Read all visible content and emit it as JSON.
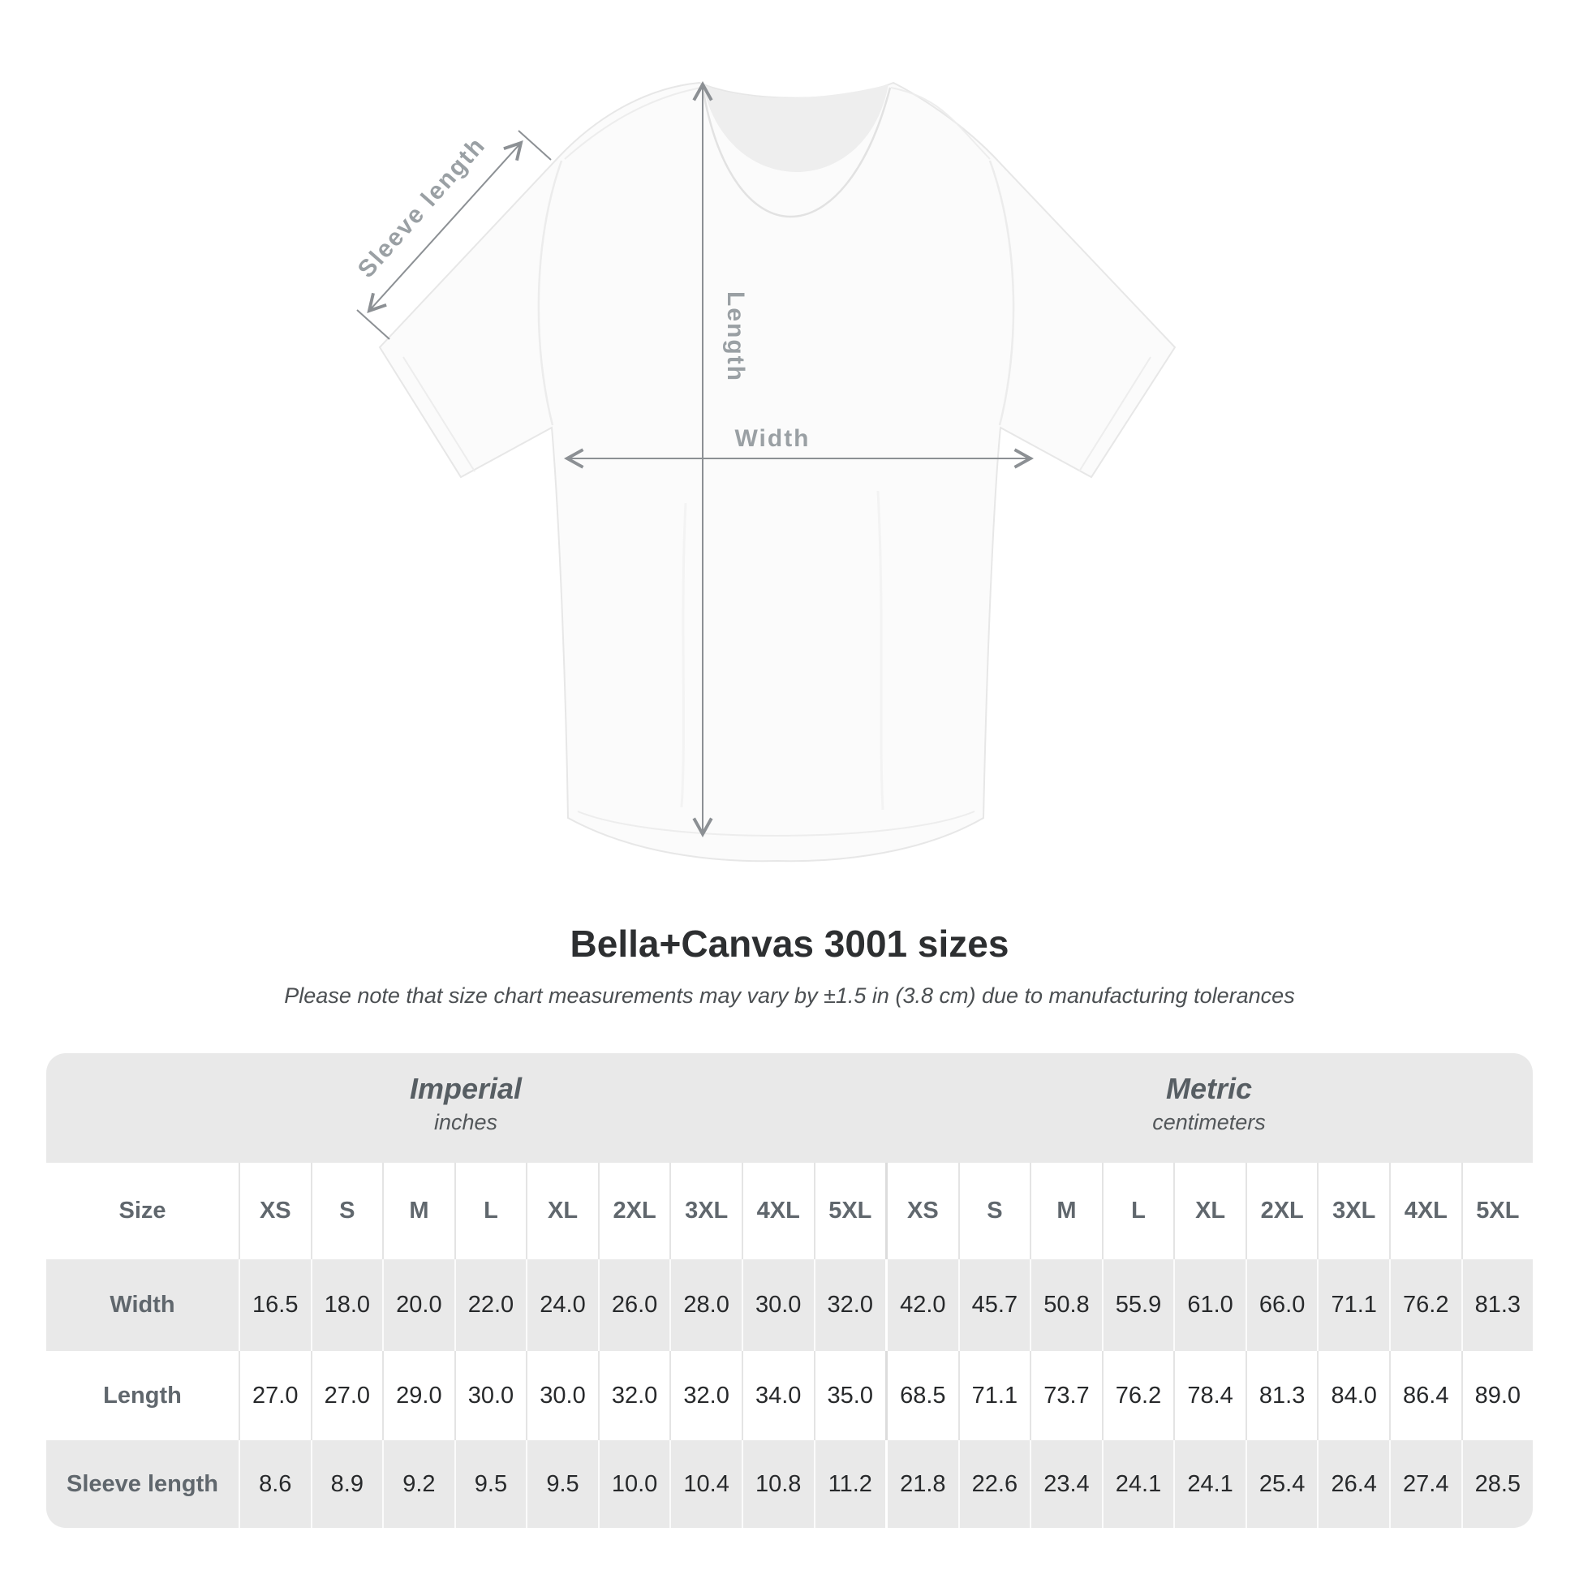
{
  "diagram": {
    "sleeve_length_label": "Sleeve length",
    "length_label": "Length",
    "width_label": "Width"
  },
  "header": {
    "title": "Bella+Canvas 3001 sizes",
    "subtitle": "Please note that size chart measurements may vary by ±1.5 in (3.8 cm) due to manufacturing tolerances"
  },
  "table": {
    "corner_label": "Size",
    "unit_groups": [
      {
        "label": "Imperial",
        "unit": "inches"
      },
      {
        "label": "Metric",
        "unit": "centimeters"
      }
    ],
    "sizes": [
      "XS",
      "S",
      "M",
      "L",
      "XL",
      "2XL",
      "3XL",
      "4XL",
      "5XL"
    ],
    "rows": [
      {
        "label": "Width",
        "imperial": [
          "16.5",
          "18.0",
          "20.0",
          "22.0",
          "24.0",
          "26.0",
          "28.0",
          "30.0",
          "32.0"
        ],
        "metric": [
          "42.0",
          "45.7",
          "50.8",
          "55.9",
          "61.0",
          "66.0",
          "71.1",
          "76.2",
          "81.3"
        ]
      },
      {
        "label": "Length",
        "imperial": [
          "27.0",
          "27.0",
          "29.0",
          "30.0",
          "30.0",
          "32.0",
          "32.0",
          "34.0",
          "35.0"
        ],
        "metric": [
          "68.5",
          "71.1",
          "73.7",
          "76.2",
          "78.4",
          "81.3",
          "84.0",
          "86.4",
          "89.0"
        ]
      },
      {
        "label": "Sleeve length",
        "imperial": [
          "8.6",
          "8.9",
          "9.2",
          "9.5",
          "9.5",
          "10.0",
          "10.4",
          "10.8",
          "11.2"
        ],
        "metric": [
          "21.8",
          "22.6",
          "23.4",
          "24.1",
          "24.1",
          "25.4",
          "26.4",
          "27.4",
          "28.5"
        ]
      }
    ]
  },
  "colors": {
    "table_bg": "#e9e9e9",
    "alt_row": "#ffffff",
    "header_text": "#60676d",
    "value_text": "#27292b",
    "diagram_label": "#9aa0a4",
    "arrow": "#8c9094",
    "title_text": "#2d2f31"
  },
  "chart_data": {
    "type": "table",
    "title": "Bella+Canvas 3001 sizes",
    "note": "Please note that size chart measurements may vary by ±1.5 in (3.8 cm) due to manufacturing tolerances",
    "columns": [
      "XS",
      "S",
      "M",
      "L",
      "XL",
      "2XL",
      "3XL",
      "4XL",
      "5XL"
    ],
    "units": {
      "imperial": "inches",
      "metric": "centimeters"
    },
    "rows": [
      {
        "measure": "Width",
        "imperial": [
          16.5,
          18.0,
          20.0,
          22.0,
          24.0,
          26.0,
          28.0,
          30.0,
          32.0
        ],
        "metric": [
          42.0,
          45.7,
          50.8,
          55.9,
          61.0,
          66.0,
          71.1,
          76.2,
          81.3
        ]
      },
      {
        "measure": "Length",
        "imperial": [
          27.0,
          27.0,
          29.0,
          30.0,
          30.0,
          32.0,
          32.0,
          34.0,
          35.0
        ],
        "metric": [
          68.5,
          71.1,
          73.7,
          76.2,
          78.4,
          81.3,
          84.0,
          86.4,
          89.0
        ]
      },
      {
        "measure": "Sleeve length",
        "imperial": [
          8.6,
          8.9,
          9.2,
          9.5,
          9.5,
          10.0,
          10.4,
          10.8,
          11.2
        ],
        "metric": [
          21.8,
          22.6,
          23.4,
          24.1,
          24.1,
          25.4,
          26.4,
          27.4,
          28.5
        ]
      }
    ]
  }
}
